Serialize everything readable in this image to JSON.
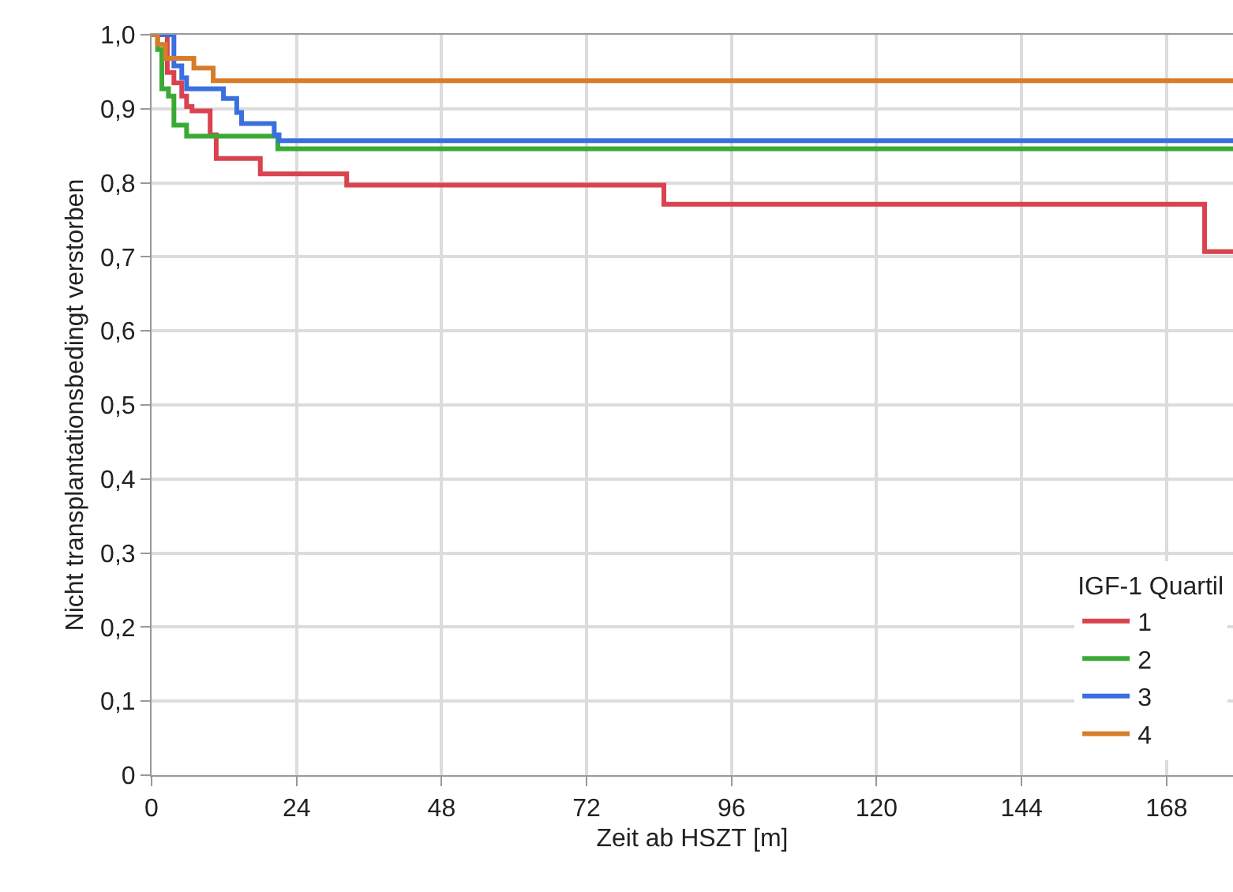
{
  "chart_data": {
    "type": "step",
    "xlabel": "Zeit ab HSZT [m]",
    "ylabel": "Nicht transplantationsbedingt verstorben",
    "legend_title": "IGF-1 Quartil",
    "xlim": [
      0,
      179
    ],
    "xticks": [
      0,
      24,
      48,
      72,
      96,
      120,
      144,
      168
    ],
    "ylim": [
      0,
      1
    ],
    "yticks": [
      {
        "value": 0,
        "label": "0"
      },
      {
        "value": 0.1,
        "label": "0,1"
      },
      {
        "value": 0.2,
        "label": "0,2"
      },
      {
        "value": 0.3,
        "label": "0,3"
      },
      {
        "value": 0.4,
        "label": "0,4"
      },
      {
        "value": 0.5,
        "label": "0,5"
      },
      {
        "value": 0.6,
        "label": "0,6"
      },
      {
        "value": 0.7,
        "label": "0,7"
      },
      {
        "value": 0.8,
        "label": "0,8"
      },
      {
        "value": 0.9,
        "label": "0,9"
      },
      {
        "value": 1,
        "label": "1,0"
      }
    ],
    "grid": true,
    "legend": "bottom right",
    "marker": "none",
    "line_style": "solid",
    "series": [
      {
        "name": "1",
        "color": "#d9434f",
        "x": [
          0,
          2.6,
          3.7,
          5,
          5.8,
          6.7,
          9.7,
          10.7,
          18,
          32.3,
          84.8,
          174.3,
          179
        ],
        "values": [
          1,
          0.949,
          0.935,
          0.917,
          0.903,
          0.897,
          0.865,
          0.833,
          0.812,
          0.797,
          0.771,
          0.707,
          0.707
        ]
      },
      {
        "name": "2",
        "color": "#3aaa35",
        "x": [
          0,
          1,
          1.7,
          2.8,
          3.7,
          5.8,
          20.9,
          179
        ],
        "values": [
          1,
          0.98,
          0.927,
          0.917,
          0.878,
          0.863,
          0.846,
          0.846
        ]
      },
      {
        "name": "3",
        "color": "#3a6fe0",
        "x": [
          0,
          3.7,
          5,
          5.8,
          11.9,
          14.1,
          14.9,
          20.3,
          21.1,
          179
        ],
        "values": [
          1,
          0.958,
          0.942,
          0.927,
          0.914,
          0.895,
          0.88,
          0.865,
          0.857,
          0.857
        ]
      },
      {
        "name": "4",
        "color": "#d77c2a",
        "x": [
          0,
          1,
          2.3,
          7,
          10.2,
          179
        ],
        "values": [
          1,
          0.987,
          0.968,
          0.955,
          0.938,
          0.938
        ]
      }
    ]
  }
}
